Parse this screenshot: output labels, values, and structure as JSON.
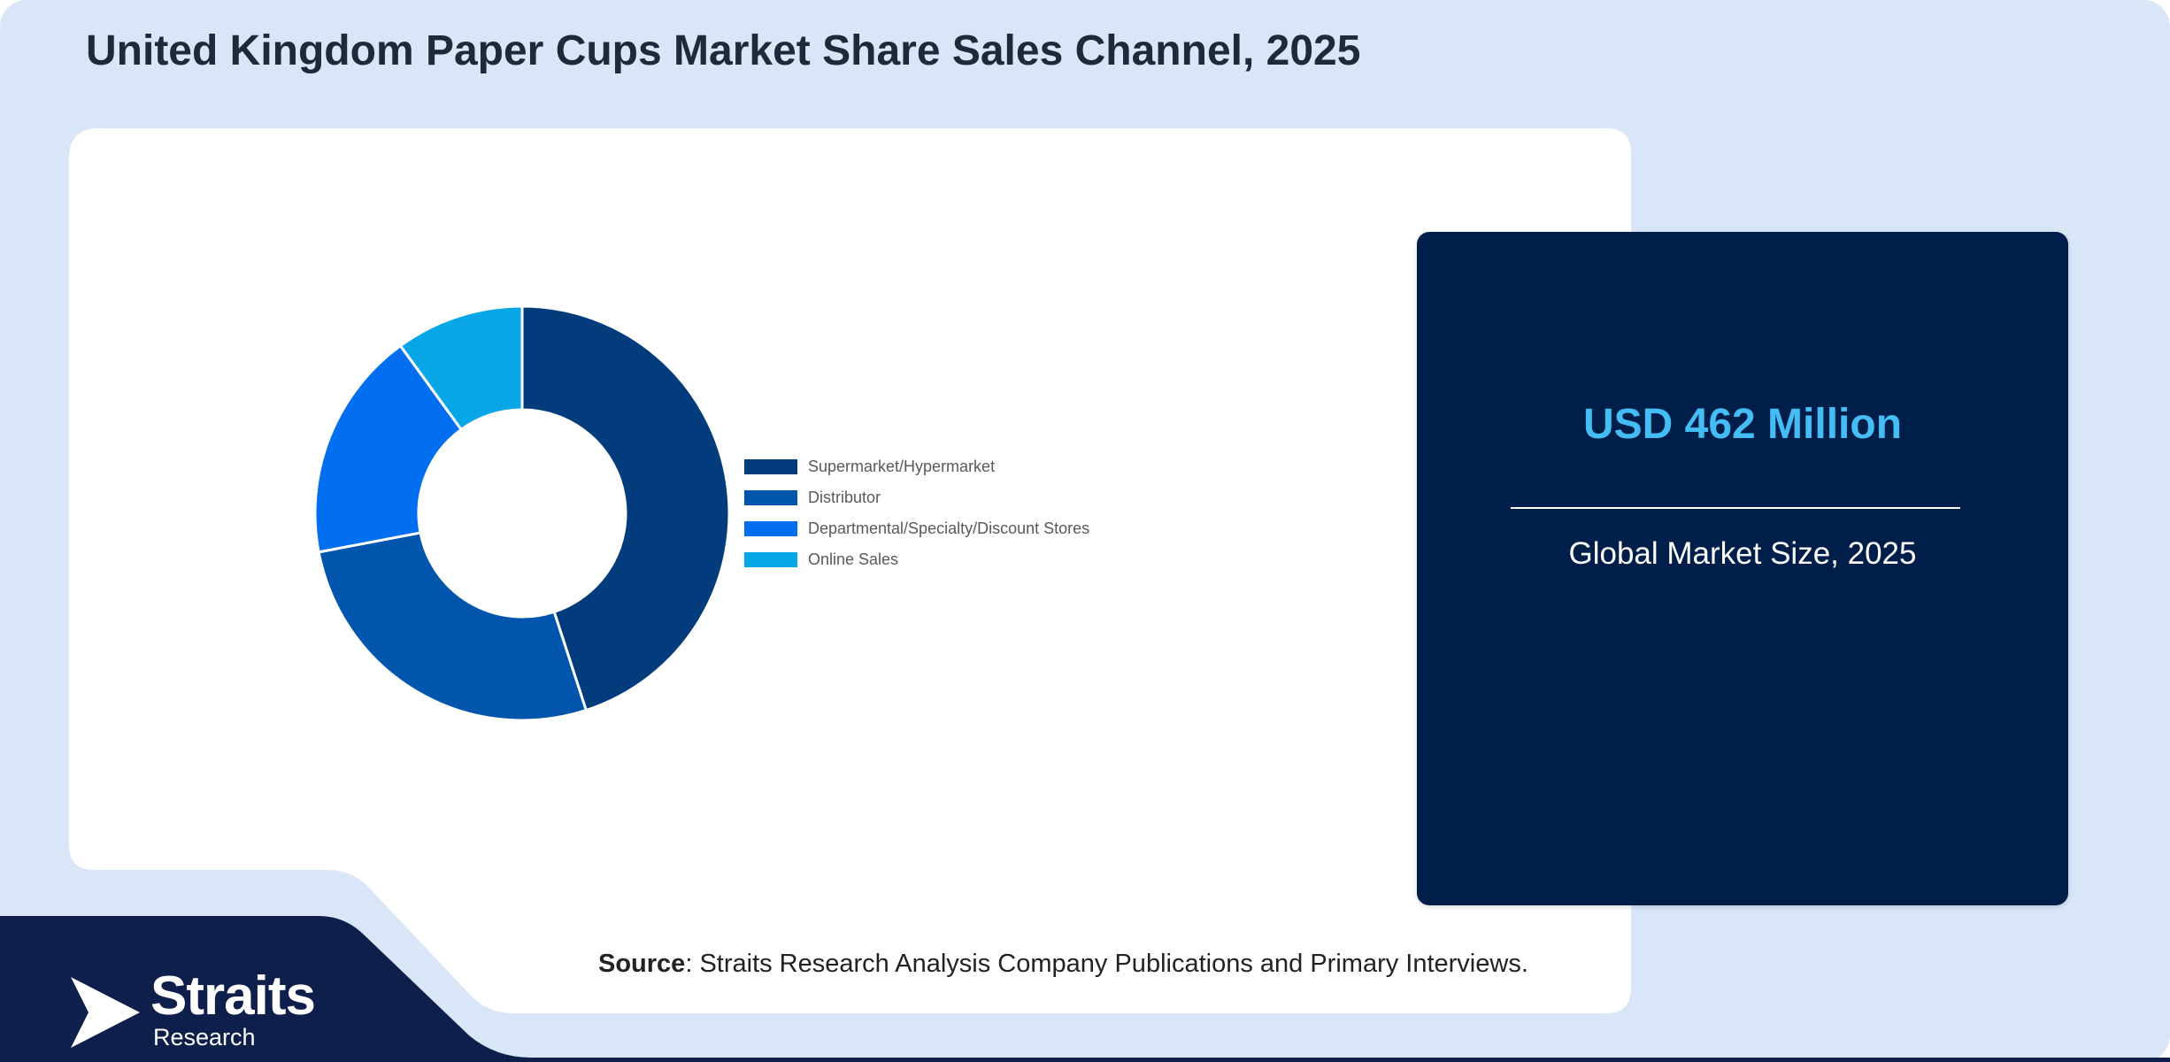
{
  "title": "United Kingdom Paper Cups Market Share Sales Channel, 2025",
  "chart_data": {
    "type": "pie",
    "variant": "donut",
    "title": "",
    "categories": [
      "Supermarket/Hypermarket",
      "Distributor",
      "Departmental/Specialty/Discount Stores",
      "Online Sales"
    ],
    "values": [
      45,
      27,
      18,
      10
    ],
    "colors": [
      "#023c7c",
      "#0155ac",
      "#026ff1",
      "#07a6e6"
    ],
    "legend_position": "right"
  },
  "market_card": {
    "value": "USD 462 Million",
    "label": "Global Market Size, 2025"
  },
  "source": {
    "label": "Source",
    "text": ": Straits Research Analysis Company Publications and Primary Interviews."
  },
  "logo": {
    "name": "Straits",
    "sub": "Research"
  },
  "colors": {
    "background": "#d8e6f8",
    "panel": "#ffffff",
    "footer": "#0e1f4c",
    "card": "#001e4a",
    "value_text": "#44bdf5"
  }
}
